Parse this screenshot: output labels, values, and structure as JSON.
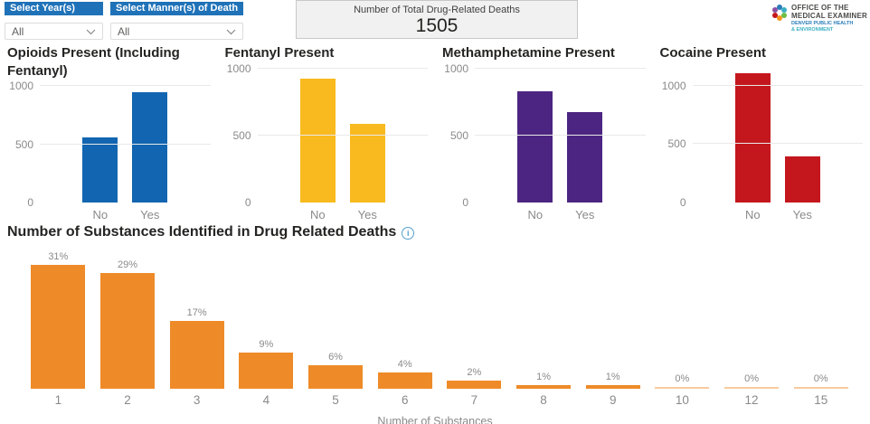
{
  "filters": {
    "year": {
      "header": "Select Year(s)",
      "value": "All"
    },
    "manner": {
      "header": "Select Manner(s) of Death",
      "value": "All"
    }
  },
  "kpi_card": {
    "label": "Number of Total Drug-Related Deaths",
    "value": "1505"
  },
  "logo": {
    "line1": "OFFICE OF THE",
    "line2": "MEDICAL EXAMINER",
    "line3": "DENVER PUBLIC HEALTH",
    "line4": "& ENVIRONMENT"
  },
  "colors": {
    "slicer_header": "#1F72B8",
    "opioids_bar": "#1265B0",
    "fentanyl_bar": "#F8BA1E",
    "meth_bar": "#4C2582",
    "cocaine_bar": "#C4171D",
    "substances_bar": "#EE8B28",
    "kpi_bg": "#F1F1F1",
    "grid": "#E9E9E9",
    "axis_text": "#8A8A8A",
    "title_text": "#252423"
  },
  "chart_data": [
    {
      "type": "bar",
      "title": "Opioids Present (Including Fentanyl)",
      "categories": [
        "No",
        "Yes"
      ],
      "values": [
        560,
        945
      ],
      "color": "#1265B0",
      "ylim": [
        0,
        1000
      ],
      "yticks": [
        0,
        500,
        1000
      ],
      "xlabel": "",
      "ylabel": "",
      "grid": true,
      "legend": false
    },
    {
      "type": "bar",
      "title": "Fentanyl Present",
      "categories": [
        "No",
        "Yes"
      ],
      "values": [
        920,
        585
      ],
      "color": "#F8BA1E",
      "ylim": [
        0,
        1000
      ],
      "yticks": [
        0,
        500,
        1000
      ],
      "xlabel": "",
      "ylabel": "",
      "grid": true,
      "legend": false
    },
    {
      "type": "bar",
      "title": "Methamphetamine Present",
      "categories": [
        "No",
        "Yes"
      ],
      "values": [
        830,
        675
      ],
      "color": "#4C2582",
      "ylim": [
        0,
        1000
      ],
      "yticks": [
        0,
        500,
        1000
      ],
      "xlabel": "",
      "ylabel": "",
      "grid": true,
      "legend": false
    },
    {
      "type": "bar",
      "title": "Cocaine Present",
      "categories": [
        "No",
        "Yes"
      ],
      "values": [
        1110,
        395
      ],
      "color": "#C4171D",
      "ylim": [
        0,
        1150
      ],
      "yticks": [
        0,
        500,
        1000
      ],
      "xlabel": "",
      "ylabel": "",
      "grid": true,
      "legend": false
    },
    {
      "type": "bar",
      "title": "Number of Substances Identified in Drug Related Deaths",
      "categories": [
        "1",
        "2",
        "3",
        "4",
        "5",
        "6",
        "7",
        "8",
        "9",
        "10",
        "12",
        "15"
      ],
      "values": [
        31,
        29,
        17,
        9,
        6,
        4,
        2,
        1,
        1,
        0,
        0,
        0
      ],
      "labels": [
        "31%",
        "29%",
        "17%",
        "9%",
        "6%",
        "4%",
        "2%",
        "1%",
        "1%",
        "0%",
        "0%",
        "0%"
      ],
      "unit": "%",
      "color": "#EE8B28",
      "ylim": [
        0,
        34
      ],
      "xlabel": "Number of Substances",
      "ylabel": "",
      "grid": false,
      "legend": false,
      "data_labels": "above bars"
    }
  ]
}
